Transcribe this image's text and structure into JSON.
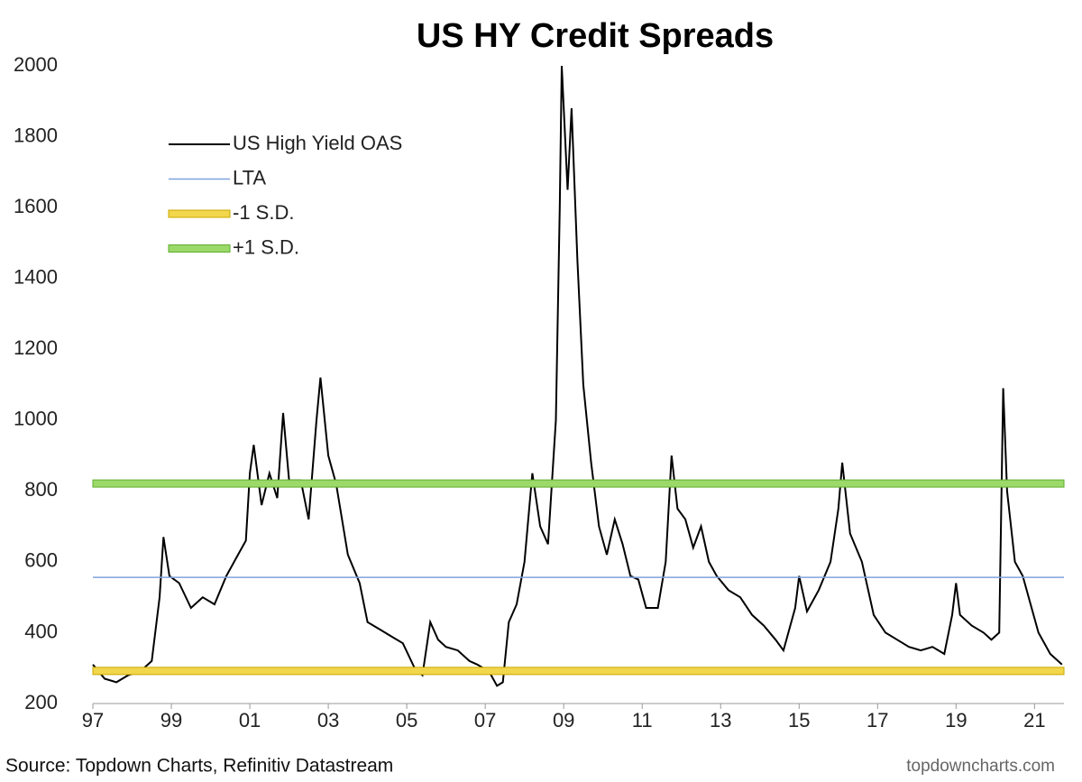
{
  "chart_data": {
    "type": "line",
    "title": "US HY Credit Spreads",
    "source": "Source: Topdown Charts, Refinitiv Datastream",
    "watermark": "topdowncharts.com",
    "xlim": [
      1997,
      2021.75
    ],
    "ylim": [
      200,
      2000
    ],
    "yticks": [
      200,
      400,
      600,
      800,
      1000,
      1200,
      1400,
      1600,
      1800,
      2000
    ],
    "xticks": [
      {
        "value": 1997,
        "label": "97"
      },
      {
        "value": 1999,
        "label": "99"
      },
      {
        "value": 2001,
        "label": "01"
      },
      {
        "value": 2003,
        "label": "03"
      },
      {
        "value": 2005,
        "label": "05"
      },
      {
        "value": 2007,
        "label": "07"
      },
      {
        "value": 2009,
        "label": "09"
      },
      {
        "value": 2011,
        "label": "11"
      },
      {
        "value": 2013,
        "label": "13"
      },
      {
        "value": 2015,
        "label": "15"
      },
      {
        "value": 2017,
        "label": "17"
      },
      {
        "value": 2019,
        "label": "19"
      },
      {
        "value": 2021,
        "label": "21"
      }
    ],
    "series": [
      {
        "name": "US High Yield OAS",
        "color": "#000000",
        "x": [
          1997.0,
          1997.3,
          1997.6,
          1997.9,
          1998.2,
          1998.5,
          1998.7,
          1998.8,
          1998.95,
          1999.2,
          1999.5,
          1999.8,
          2000.1,
          2000.4,
          2000.7,
          2000.9,
          2001.0,
          2001.1,
          2001.3,
          2001.5,
          2001.7,
          2001.85,
          2002.0,
          2002.3,
          2002.5,
          2002.7,
          2002.8,
          2003.0,
          2003.2,
          2003.5,
          2003.8,
          2004.0,
          2004.3,
          2004.6,
          2004.9,
          2005.2,
          2005.4,
          2005.6,
          2005.8,
          2006.0,
          2006.3,
          2006.6,
          2006.8,
          2007.1,
          2007.3,
          2007.45,
          2007.6,
          2007.8,
          2008.0,
          2008.2,
          2008.4,
          2008.6,
          2008.8,
          2008.9,
          2008.95,
          2009.1,
          2009.2,
          2009.35,
          2009.5,
          2009.7,
          2009.9,
          2010.1,
          2010.3,
          2010.5,
          2010.7,
          2010.9,
          2011.1,
          2011.4,
          2011.6,
          2011.75,
          2011.9,
          2012.1,
          2012.3,
          2012.5,
          2012.7,
          2012.9,
          2013.2,
          2013.5,
          2013.8,
          2014.1,
          2014.4,
          2014.6,
          2014.9,
          2015.0,
          2015.2,
          2015.5,
          2015.8,
          2016.0,
          2016.1,
          2016.3,
          2016.6,
          2016.9,
          2017.2,
          2017.5,
          2017.8,
          2018.1,
          2018.4,
          2018.7,
          2018.9,
          2019.0,
          2019.1,
          2019.4,
          2019.7,
          2019.9,
          2020.1,
          2020.2,
          2020.3,
          2020.5,
          2020.7,
          2020.9,
          2021.1,
          2021.4,
          2021.7
        ],
        "values": [
          310,
          270,
          260,
          280,
          290,
          320,
          500,
          670,
          560,
          540,
          470,
          500,
          480,
          560,
          620,
          660,
          850,
          930,
          760,
          850,
          780,
          1020,
          830,
          830,
          720,
          1000,
          1120,
          900,
          820,
          620,
          540,
          430,
          410,
          390,
          370,
          300,
          280,
          430,
          380,
          360,
          350,
          320,
          310,
          290,
          250,
          260,
          430,
          480,
          600,
          850,
          700,
          650,
          1000,
          1600,
          2000,
          1650,
          1880,
          1450,
          1100,
          880,
          700,
          620,
          720,
          650,
          560,
          550,
          470,
          470,
          600,
          900,
          750,
          720,
          640,
          700,
          600,
          560,
          520,
          500,
          450,
          420,
          380,
          350,
          470,
          560,
          460,
          520,
          600,
          750,
          880,
          680,
          600,
          450,
          400,
          380,
          360,
          350,
          360,
          340,
          450,
          540,
          450,
          420,
          400,
          380,
          400,
          1090,
          800,
          600,
          560,
          480,
          400,
          340,
          310
        ]
      },
      {
        "name": "LTA",
        "color": "#7fa3dc",
        "value": 556
      },
      {
        "name": "-1 S.D.",
        "color": "#f2d64b",
        "value": 292
      },
      {
        "name": "+1 S.D.",
        "color": "#9bd96a",
        "value": 821
      }
    ]
  }
}
